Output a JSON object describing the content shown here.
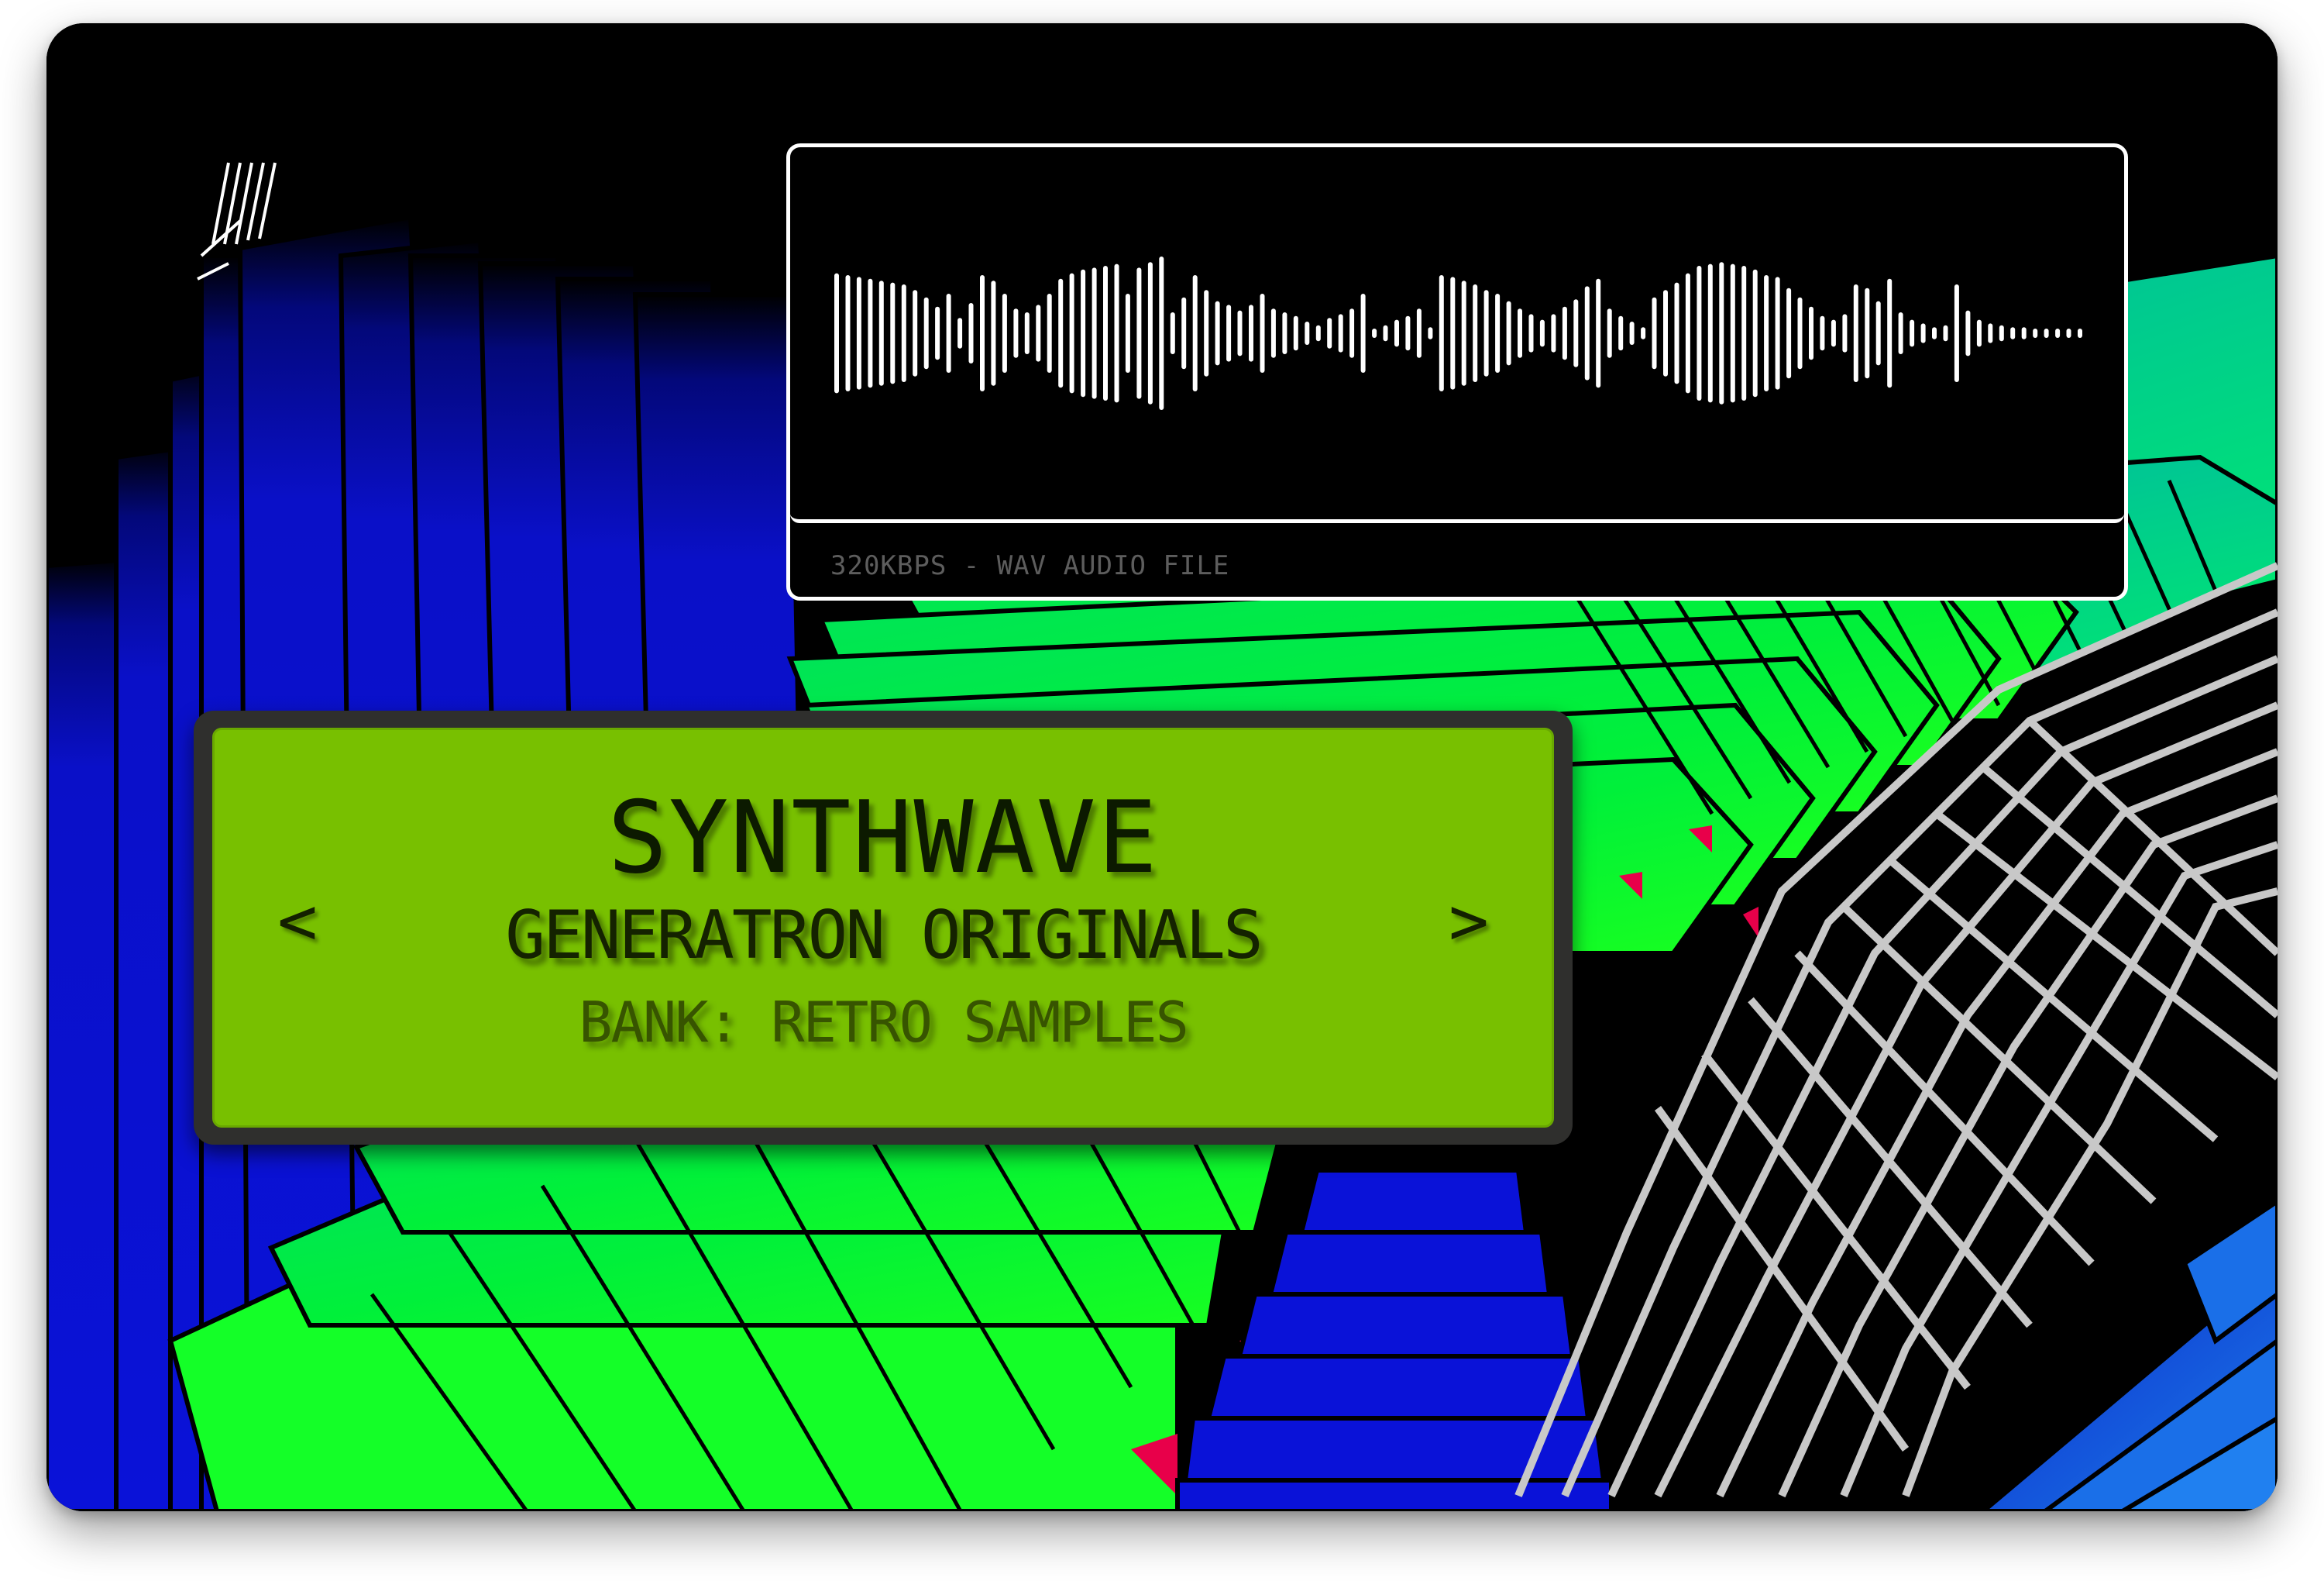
{
  "waveform": {
    "footer": "320KBPS - WAV AUDIO FILE",
    "color": "#ffffff",
    "amplitudes": [
      0.31,
      0.3,
      0.29,
      0.28,
      0.27,
      0.26,
      0.25,
      0.22,
      0.18,
      0.13,
      0.2,
      0.07,
      0.15,
      0.3,
      0.27,
      0.2,
      0.12,
      0.1,
      0.14,
      0.2,
      0.28,
      0.31,
      0.33,
      0.34,
      0.35,
      0.36,
      0.2,
      0.34,
      0.37,
      0.4,
      0.1,
      0.18,
      0.3,
      0.22,
      0.16,
      0.14,
      0.11,
      0.14,
      0.2,
      0.12,
      0.1,
      0.08,
      0.05,
      0.03,
      0.07,
      0.09,
      0.12,
      0.2,
      0.01,
      0.03,
      0.06,
      0.08,
      0.12,
      0.02,
      0.3,
      0.29,
      0.27,
      0.25,
      0.22,
      0.2,
      0.16,
      0.12,
      0.09,
      0.06,
      0.09,
      0.13,
      0.17,
      0.24,
      0.28,
      0.12,
      0.08,
      0.05,
      0.02,
      0.18,
      0.22,
      0.26,
      0.31,
      0.35,
      0.36,
      0.37,
      0.36,
      0.35,
      0.33,
      0.3,
      0.29,
      0.23,
      0.18,
      0.13,
      0.08,
      0.06,
      0.09,
      0.25,
      0.23,
      0.16,
      0.28,
      0.1,
      0.06,
      0.04,
      0.02,
      0.03,
      0.25,
      0.11,
      0.06,
      0.04,
      0.03,
      0.02,
      0.02,
      0.01,
      0.01,
      0.005,
      0.005,
      0.005
    ]
  },
  "lcd": {
    "title": "SYNTHWAVE",
    "subtitle": "GENERATRON ORIGINALS",
    "bank": "BANK: RETRO SAMPLES",
    "prev": "<",
    "next": ">",
    "screen_color": "#78c000"
  },
  "background": {
    "colors": [
      "#000000",
      "#0a10c8",
      "#00f03a",
      "#00d7a0",
      "#c0c0c0",
      "#e8004a"
    ]
  }
}
